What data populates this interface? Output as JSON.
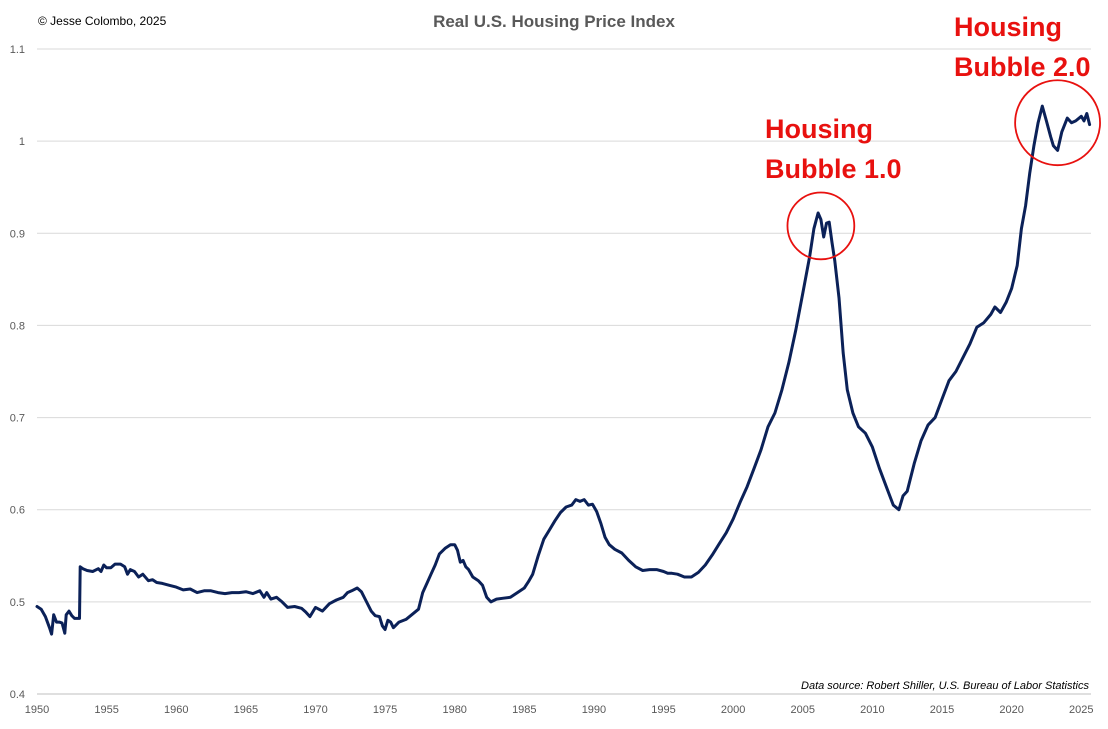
{
  "header": {
    "copyright": "© Jesse Colombo, 2025",
    "title": "Real U.S. Housing Price Index"
  },
  "chart_data": {
    "type": "line",
    "title": "Real U.S. Housing Price Index",
    "xlabel": "",
    "ylabel": "",
    "xlim": [
      1950,
      2025.7
    ],
    "ylim": [
      0.4,
      1.1
    ],
    "x_ticks": [
      1950,
      1955,
      1960,
      1965,
      1970,
      1975,
      1980,
      1985,
      1990,
      1995,
      2000,
      2005,
      2010,
      2015,
      2020,
      2025
    ],
    "y_ticks": [
      0.4,
      0.5,
      0.6,
      0.7,
      0.8,
      0.9,
      1,
      1.1
    ],
    "grid": "horizontal",
    "legend": "none",
    "line_color": "#0b2158",
    "series": [
      {
        "points": [
          [
            1950.0,
            0.495
          ],
          [
            1950.3,
            0.492
          ],
          [
            1950.6,
            0.484
          ],
          [
            1950.9,
            0.472
          ],
          [
            1951.05,
            0.465
          ],
          [
            1951.2,
            0.486
          ],
          [
            1951.4,
            0.478
          ],
          [
            1951.6,
            0.478
          ],
          [
            1951.8,
            0.477
          ],
          [
            1952.0,
            0.466
          ],
          [
            1952.1,
            0.486
          ],
          [
            1952.3,
            0.49
          ],
          [
            1952.5,
            0.485
          ],
          [
            1952.7,
            0.482
          ],
          [
            1952.9,
            0.482
          ],
          [
            1953.05,
            0.482
          ],
          [
            1953.1,
            0.538
          ],
          [
            1953.3,
            0.536
          ],
          [
            1953.6,
            0.534
          ],
          [
            1954.0,
            0.533
          ],
          [
            1954.4,
            0.536
          ],
          [
            1954.6,
            0.533
          ],
          [
            1954.8,
            0.54
          ],
          [
            1955.0,
            0.537
          ],
          [
            1955.3,
            0.537
          ],
          [
            1955.6,
            0.541
          ],
          [
            1956.0,
            0.541
          ],
          [
            1956.3,
            0.538
          ],
          [
            1956.5,
            0.53
          ],
          [
            1956.7,
            0.535
          ],
          [
            1957.0,
            0.533
          ],
          [
            1957.3,
            0.527
          ],
          [
            1957.6,
            0.53
          ],
          [
            1958.0,
            0.523
          ],
          [
            1958.3,
            0.524
          ],
          [
            1958.6,
            0.521
          ],
          [
            1959.0,
            0.52
          ],
          [
            1959.5,
            0.518
          ],
          [
            1960.0,
            0.516
          ],
          [
            1960.5,
            0.513
          ],
          [
            1961.0,
            0.514
          ],
          [
            1961.5,
            0.51
          ],
          [
            1962.0,
            0.512
          ],
          [
            1962.5,
            0.512
          ],
          [
            1963.0,
            0.51
          ],
          [
            1963.5,
            0.509
          ],
          [
            1964.0,
            0.51
          ],
          [
            1964.5,
            0.51
          ],
          [
            1965.0,
            0.511
          ],
          [
            1965.5,
            0.509
          ],
          [
            1966.0,
            0.512
          ],
          [
            1966.3,
            0.505
          ],
          [
            1966.5,
            0.51
          ],
          [
            1966.8,
            0.503
          ],
          [
            1967.2,
            0.505
          ],
          [
            1967.6,
            0.5
          ],
          [
            1968.0,
            0.494
          ],
          [
            1968.5,
            0.495
          ],
          [
            1969.0,
            0.493
          ],
          [
            1969.3,
            0.489
          ],
          [
            1969.6,
            0.484
          ],
          [
            1970.0,
            0.494
          ],
          [
            1970.5,
            0.49
          ],
          [
            1971.0,
            0.498
          ],
          [
            1971.5,
            0.502
          ],
          [
            1972.0,
            0.505
          ],
          [
            1972.3,
            0.51
          ],
          [
            1972.6,
            0.512
          ],
          [
            1973.0,
            0.515
          ],
          [
            1973.3,
            0.511
          ],
          [
            1973.6,
            0.502
          ],
          [
            1974.0,
            0.49
          ],
          [
            1974.3,
            0.485
          ],
          [
            1974.6,
            0.484
          ],
          [
            1974.8,
            0.474
          ],
          [
            1975.0,
            0.47
          ],
          [
            1975.2,
            0.48
          ],
          [
            1975.4,
            0.478
          ],
          [
            1975.6,
            0.472
          ],
          [
            1976.0,
            0.478
          ],
          [
            1976.5,
            0.481
          ],
          [
            1977.0,
            0.487
          ],
          [
            1977.4,
            0.492
          ],
          [
            1977.7,
            0.51
          ],
          [
            1978.0,
            0.52
          ],
          [
            1978.3,
            0.53
          ],
          [
            1978.6,
            0.54
          ],
          [
            1978.9,
            0.552
          ],
          [
            1979.3,
            0.558
          ],
          [
            1979.7,
            0.562
          ],
          [
            1980.0,
            0.562
          ],
          [
            1980.2,
            0.556
          ],
          [
            1980.4,
            0.543
          ],
          [
            1980.6,
            0.545
          ],
          [
            1980.8,
            0.538
          ],
          [
            1981.0,
            0.535
          ],
          [
            1981.3,
            0.527
          ],
          [
            1981.7,
            0.523
          ],
          [
            1982.0,
            0.518
          ],
          [
            1982.3,
            0.505
          ],
          [
            1982.6,
            0.5
          ],
          [
            1983.0,
            0.503
          ],
          [
            1983.5,
            0.504
          ],
          [
            1984.0,
            0.505
          ],
          [
            1984.5,
            0.51
          ],
          [
            1985.0,
            0.515
          ],
          [
            1985.3,
            0.522
          ],
          [
            1985.6,
            0.53
          ],
          [
            1986.0,
            0.55
          ],
          [
            1986.4,
            0.568
          ],
          [
            1986.8,
            0.578
          ],
          [
            1987.2,
            0.588
          ],
          [
            1987.6,
            0.597
          ],
          [
            1988.0,
            0.603
          ],
          [
            1988.4,
            0.605
          ],
          [
            1988.7,
            0.611
          ],
          [
            1989.0,
            0.609
          ],
          [
            1989.3,
            0.611
          ],
          [
            1989.6,
            0.605
          ],
          [
            1989.9,
            0.606
          ],
          [
            1990.2,
            0.598
          ],
          [
            1990.5,
            0.585
          ],
          [
            1990.8,
            0.57
          ],
          [
            1991.1,
            0.562
          ],
          [
            1991.5,
            0.557
          ],
          [
            1992.0,
            0.553
          ],
          [
            1992.5,
            0.545
          ],
          [
            1993.0,
            0.538
          ],
          [
            1993.5,
            0.534
          ],
          [
            1994.0,
            0.535
          ],
          [
            1994.5,
            0.535
          ],
          [
            1995.0,
            0.533
          ],
          [
            1995.3,
            0.531
          ],
          [
            1995.6,
            0.531
          ],
          [
            1996.0,
            0.53
          ],
          [
            1996.5,
            0.527
          ],
          [
            1997.0,
            0.527
          ],
          [
            1997.5,
            0.532
          ],
          [
            1998.0,
            0.54
          ],
          [
            1998.5,
            0.551
          ],
          [
            1999.0,
            0.563
          ],
          [
            1999.5,
            0.575
          ],
          [
            2000.0,
            0.59
          ],
          [
            2000.5,
            0.608
          ],
          [
            2001.0,
            0.625
          ],
          [
            2001.5,
            0.645
          ],
          [
            2002.0,
            0.665
          ],
          [
            2002.5,
            0.69
          ],
          [
            2003.0,
            0.705
          ],
          [
            2003.5,
            0.73
          ],
          [
            2004.0,
            0.76
          ],
          [
            2004.5,
            0.795
          ],
          [
            2005.0,
            0.835
          ],
          [
            2005.5,
            0.875
          ],
          [
            2005.8,
            0.905
          ],
          [
            2006.1,
            0.922
          ],
          [
            2006.3,
            0.915
          ],
          [
            2006.5,
            0.896
          ],
          [
            2006.7,
            0.911
          ],
          [
            2006.9,
            0.912
          ],
          [
            2007.1,
            0.89
          ],
          [
            2007.3,
            0.87
          ],
          [
            2007.6,
            0.83
          ],
          [
            2007.9,
            0.77
          ],
          [
            2008.2,
            0.73
          ],
          [
            2008.6,
            0.705
          ],
          [
            2009.0,
            0.69
          ],
          [
            2009.5,
            0.683
          ],
          [
            2010.0,
            0.668
          ],
          [
            2010.5,
            0.645
          ],
          [
            2011.0,
            0.625
          ],
          [
            2011.5,
            0.605
          ],
          [
            2011.9,
            0.6
          ],
          [
            2012.2,
            0.615
          ],
          [
            2012.5,
            0.62
          ],
          [
            2013.0,
            0.65
          ],
          [
            2013.5,
            0.675
          ],
          [
            2014.0,
            0.692
          ],
          [
            2014.5,
            0.7
          ],
          [
            2015.0,
            0.72
          ],
          [
            2015.5,
            0.74
          ],
          [
            2016.0,
            0.75
          ],
          [
            2016.5,
            0.765
          ],
          [
            2017.0,
            0.78
          ],
          [
            2017.5,
            0.798
          ],
          [
            2018.0,
            0.803
          ],
          [
            2018.5,
            0.812
          ],
          [
            2018.8,
            0.82
          ],
          [
            2019.2,
            0.814
          ],
          [
            2019.6,
            0.825
          ],
          [
            2020.0,
            0.84
          ],
          [
            2020.4,
            0.865
          ],
          [
            2020.7,
            0.905
          ],
          [
            2021.0,
            0.93
          ],
          [
            2021.3,
            0.965
          ],
          [
            2021.6,
            0.995
          ],
          [
            2021.9,
            1.02
          ],
          [
            2022.2,
            1.038
          ],
          [
            2022.5,
            1.022
          ],
          [
            2022.8,
            1.005
          ],
          [
            2023.0,
            0.995
          ],
          [
            2023.3,
            0.99
          ],
          [
            2023.6,
            1.01
          ],
          [
            2024.0,
            1.025
          ],
          [
            2024.3,
            1.02
          ],
          [
            2024.6,
            1.022
          ],
          [
            2025.0,
            1.027
          ],
          [
            2025.2,
            1.022
          ],
          [
            2025.4,
            1.03
          ],
          [
            2025.6,
            1.018
          ]
        ]
      }
    ],
    "annotations": [
      {
        "lines": [
          "Housing",
          "Bubble 1.0"
        ],
        "circle_center": [
          2006.3,
          0.908
        ],
        "circle_radius_x_years": 2.4,
        "color": "#e8110f"
      },
      {
        "lines": [
          "Housing",
          "Bubble 2.0"
        ],
        "circle_center": [
          2023.3,
          1.02
        ],
        "circle_radius_x_years": 3.05,
        "color": "#e8110f"
      }
    ],
    "source_note": "Data source: Robert Shiller, U.S. Bureau of Labor Statistics"
  }
}
